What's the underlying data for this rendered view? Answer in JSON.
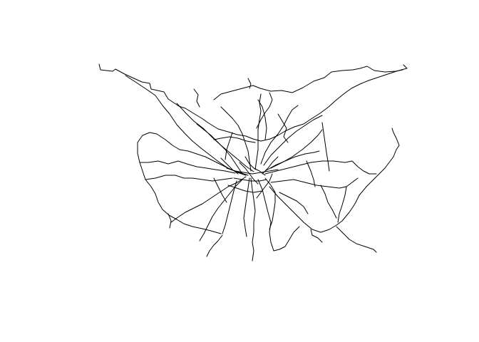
{
  "map": {
    "line_color": "#000000",
    "background_color": "#ffffff"
  }
}
